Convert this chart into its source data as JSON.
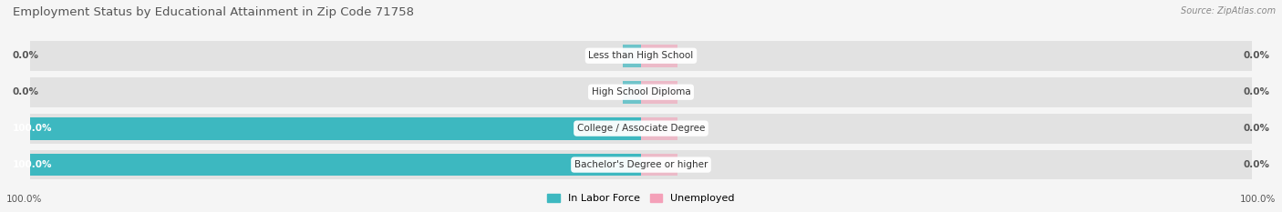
{
  "title": "Employment Status by Educational Attainment in Zip Code 71758",
  "source": "Source: ZipAtlas.com",
  "categories": [
    "Less than High School",
    "High School Diploma",
    "College / Associate Degree",
    "Bachelor's Degree or higher"
  ],
  "labor_force": [
    0.0,
    0.0,
    100.0,
    100.0
  ],
  "unemployed": [
    0.0,
    0.0,
    0.0,
    0.0
  ],
  "color_labor": "#3db8c0",
  "color_unemployed": "#f4a0b8",
  "color_bg_bar": "#e2e2e2",
  "background_color": "#f5f5f5",
  "title_fontsize": 9.5,
  "label_fontsize": 7.5,
  "legend_fontsize": 8,
  "tick_fontsize": 7.5
}
